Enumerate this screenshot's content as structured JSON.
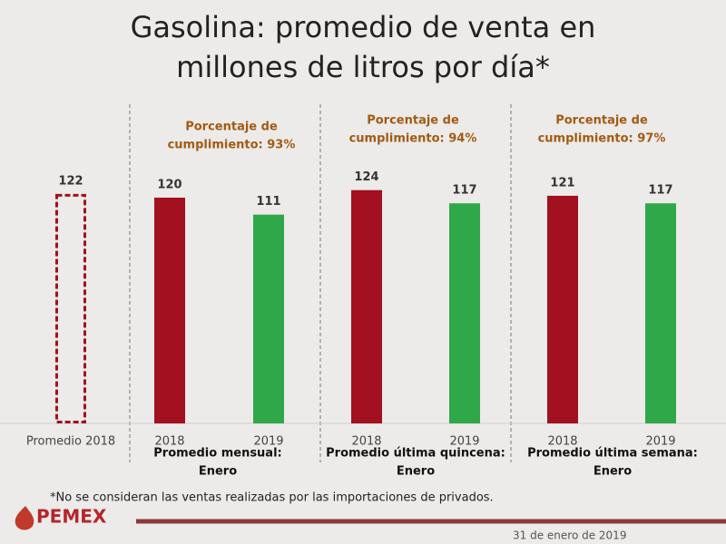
{
  "chart_data": {
    "type": "bar",
    "title": [
      "Gasolina: promedio de venta en",
      "millones de litros por día*"
    ],
    "categories": [
      "Promedio 2018",
      "2018",
      "2019",
      "2018",
      "2019",
      "2018",
      "2019"
    ],
    "values": [
      122,
      120,
      111,
      124,
      117,
      121,
      117
    ],
    "colors": [
      "#a3101f",
      "#a3101f",
      "#2fa84a",
      "#a3101f",
      "#2fa84a",
      "#a3101f",
      "#2fa84a"
    ],
    "outline_only": [
      true,
      false,
      false,
      false,
      false,
      false,
      false
    ],
    "groups": [
      {
        "annotation": [
          "Porcentaje de",
          "cumplimiento: 93%"
        ],
        "label": [
          "Promedio mensual:",
          "Enero"
        ]
      },
      {
        "annotation": [
          "Porcentaje de",
          "cumplimiento: 94%"
        ],
        "label": [
          "Promedio última quincena:",
          "Enero"
        ]
      },
      {
        "annotation": [
          "Porcentaje de",
          "cumplimiento: 97%"
        ],
        "label": [
          "Promedio última semana:",
          "Enero"
        ]
      }
    ],
    "footnote": "*No se consideran las ventas realizadas por las importaciones de privados.",
    "logo": "PEMEX",
    "date": "31 de enero de 2019"
  }
}
